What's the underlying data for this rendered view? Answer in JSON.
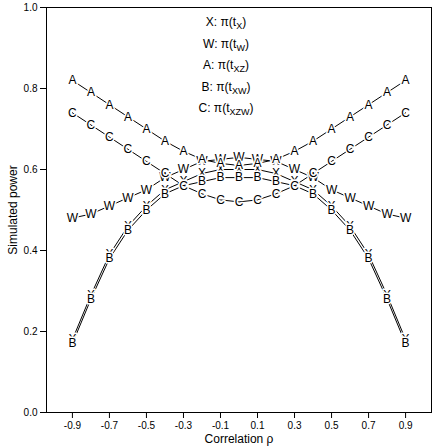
{
  "chart_data": {
    "type": "line",
    "x_label": "Correlation ρ",
    "y_label": "Simulated power",
    "x": [
      -0.9,
      -0.8,
      -0.7,
      -0.6,
      -0.5,
      -0.4,
      -0.3,
      -0.2,
      -0.1,
      0.0,
      0.1,
      0.2,
      0.3,
      0.4,
      0.5,
      0.6,
      0.7,
      0.8,
      0.9
    ],
    "series": [
      {
        "name": "X: π(tX)",
        "marker": "X",
        "color": "#000000",
        "values": [
          0.18,
          0.29,
          0.39,
          0.46,
          0.51,
          0.55,
          0.57,
          0.59,
          0.6,
          0.6,
          0.6,
          0.59,
          0.57,
          0.55,
          0.51,
          0.46,
          0.39,
          0.29,
          0.18
        ]
      },
      {
        "name": "W: π(tW)",
        "marker": "W",
        "color": "#000000",
        "values": [
          0.48,
          0.49,
          0.51,
          0.53,
          0.55,
          0.58,
          0.6,
          0.62,
          0.625,
          0.63,
          0.625,
          0.62,
          0.6,
          0.58,
          0.55,
          0.53,
          0.51,
          0.49,
          0.48
        ]
      },
      {
        "name": "A: π(tXZ)",
        "marker": "A",
        "color": "#000000",
        "values": [
          0.82,
          0.79,
          0.76,
          0.73,
          0.7,
          0.67,
          0.645,
          0.625,
          0.615,
          0.61,
          0.615,
          0.625,
          0.645,
          0.67,
          0.7,
          0.73,
          0.76,
          0.79,
          0.82
        ]
      },
      {
        "name": "B: π(tXW)",
        "marker": "B",
        "color": "#000000",
        "values": [
          0.17,
          0.28,
          0.38,
          0.45,
          0.5,
          0.54,
          0.56,
          0.57,
          0.58,
          0.58,
          0.58,
          0.57,
          0.56,
          0.54,
          0.5,
          0.45,
          0.38,
          0.28,
          0.17
        ]
      },
      {
        "name": "C: π(tXZW)",
        "marker": "C",
        "color": "#000000",
        "values": [
          0.74,
          0.71,
          0.68,
          0.65,
          0.62,
          0.59,
          0.56,
          0.54,
          0.525,
          0.52,
          0.525,
          0.54,
          0.56,
          0.59,
          0.62,
          0.65,
          0.68,
          0.71,
          0.74
        ]
      }
    ],
    "xlim": [
      -1.04,
      1.04
    ],
    "xticks": [
      -0.9,
      -0.7,
      -0.5,
      -0.3,
      -0.1,
      0.1,
      0.3,
      0.5,
      0.7,
      0.9
    ],
    "ylim": [
      0,
      1
    ],
    "yticks": [
      {
        "value": 0,
        "label": "0.0"
      },
      {
        "value": 0.2,
        "label": "0.2"
      },
      {
        "value": 0.4,
        "label": "0.4"
      },
      {
        "value": 0.6,
        "label": "0.6"
      },
      {
        "value": 0.8,
        "label": "0.8"
      },
      {
        "value": 1,
        "label": "1.0"
      }
    ],
    "grid": false,
    "legend": "top"
  }
}
